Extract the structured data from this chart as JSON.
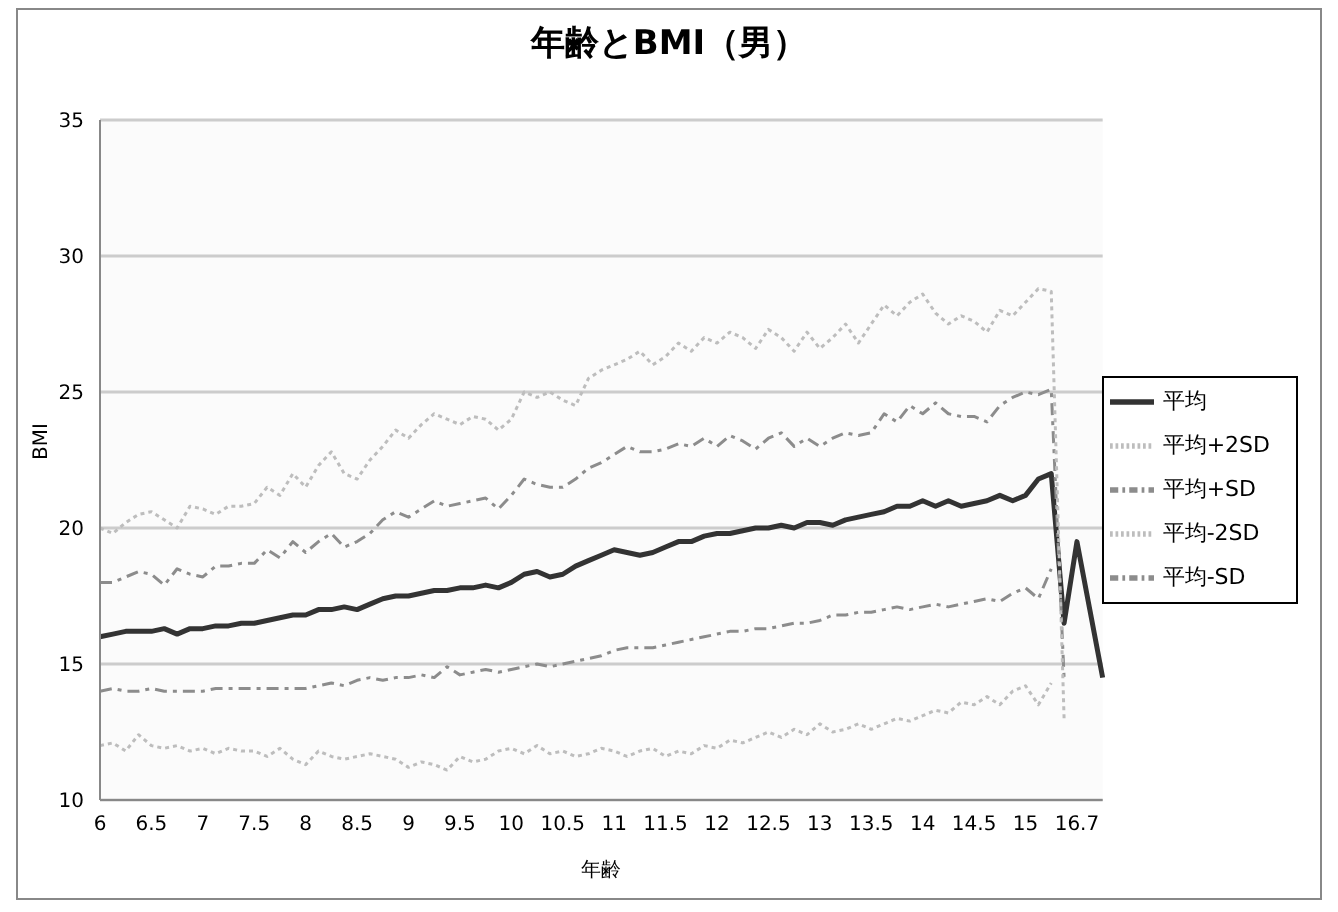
{
  "chart_data": {
    "type": "line",
    "title": "年齢とBMI（男）",
    "xlabel": "年齢",
    "ylabel": "BMI",
    "categories": [
      "6",
      null,
      null,
      null,
      "6.5",
      null,
      null,
      null,
      "7",
      null,
      null,
      null,
      "7.5",
      null,
      null,
      null,
      "8",
      null,
      null,
      null,
      "8.5",
      null,
      null,
      null,
      "9",
      null,
      null,
      null,
      "9.5",
      null,
      null,
      null,
      "10",
      null,
      null,
      null,
      "10.5",
      null,
      null,
      null,
      "11",
      null,
      null,
      null,
      "11.5",
      null,
      null,
      null,
      "12",
      null,
      null,
      null,
      "12.5",
      null,
      null,
      null,
      "13",
      null,
      null,
      null,
      "13.5",
      null,
      null,
      null,
      "14",
      null,
      null,
      null,
      "14.5",
      null,
      null,
      null,
      "15",
      null,
      null,
      null,
      "16.7",
      null,
      null
    ],
    "ylim": [
      10,
      35
    ],
    "yticks": [
      10,
      15,
      20,
      25,
      30,
      35
    ],
    "grid": "y",
    "legend": "right",
    "marker": "none",
    "series": [
      {
        "name": "平均-2SD",
        "color": "#bdbdbd",
        "line_style": "dotted",
        "values": [
          12,
          12.1,
          11.8,
          12.4,
          12,
          11.9,
          12,
          11.8,
          11.9,
          11.7,
          11.9,
          11.8,
          11.8,
          11.6,
          11.9,
          11.5,
          11.3,
          11.8,
          11.6,
          11.5,
          11.6,
          11.7,
          11.6,
          11.5,
          11.2,
          11.4,
          11.3,
          11.1,
          11.6,
          11.4,
          11.5,
          11.8,
          11.9,
          11.7,
          12,
          11.7,
          11.8,
          11.6,
          11.7,
          11.9,
          11.8,
          11.6,
          11.8,
          11.9,
          11.6,
          11.8,
          11.7,
          12,
          11.9,
          12.2,
          12.1,
          12.3,
          12.5,
          12.3,
          12.6,
          12.4,
          12.8,
          12.5,
          12.6,
          12.8,
          12.6,
          12.8,
          13,
          12.9,
          13.1,
          13.3,
          13.2,
          13.6,
          13.5,
          13.8,
          13.5,
          14,
          14.2,
          13.5,
          14.3,
          null,
          null,
          null,
          null
        ]
      },
      {
        "name": "平均-SD",
        "color": "#8c8c8c",
        "line_style": "dashed",
        "values": [
          14,
          14.1,
          14,
          14,
          14.1,
          14,
          14,
          14,
          14,
          14.1,
          14.1,
          14.1,
          14.1,
          14.1,
          14.1,
          14.1,
          14.1,
          14.2,
          14.3,
          14.2,
          14.4,
          14.5,
          14.4,
          14.5,
          14.5,
          14.6,
          14.5,
          14.9,
          14.6,
          14.7,
          14.8,
          14.7,
          14.8,
          14.9,
          15,
          14.9,
          15,
          15.1,
          15.2,
          15.3,
          15.5,
          15.6,
          15.6,
          15.6,
          15.7,
          15.8,
          15.9,
          16,
          16.1,
          16.2,
          16.2,
          16.3,
          16.3,
          16.4,
          16.5,
          16.5,
          16.6,
          16.8,
          16.8,
          16.9,
          16.9,
          17,
          17.1,
          17,
          17.1,
          17.2,
          17.1,
          17.2,
          17.3,
          17.4,
          17.3,
          17.6,
          17.8,
          17.4,
          18.5,
          null,
          null,
          null,
          null
        ]
      },
      {
        "name": "平均",
        "color": "#333333",
        "line_style": "solid",
        "values": [
          16,
          16.1,
          16.2,
          16.2,
          16.2,
          16.3,
          16.1,
          16.3,
          16.3,
          16.4,
          16.4,
          16.5,
          16.5,
          16.6,
          16.7,
          16.8,
          16.8,
          17,
          17,
          17.1,
          17,
          17.2,
          17.4,
          17.5,
          17.5,
          17.6,
          17.7,
          17.7,
          17.8,
          17.8,
          17.9,
          17.8,
          18,
          18.3,
          18.4,
          18.2,
          18.3,
          18.6,
          18.8,
          19,
          19.2,
          19.1,
          19,
          19.1,
          19.3,
          19.5,
          19.5,
          19.7,
          19.8,
          19.8,
          19.9,
          20,
          20,
          20.1,
          20,
          20.2,
          20.2,
          20.1,
          20.3,
          20.4,
          20.5,
          20.6,
          20.8,
          20.8,
          21,
          20.8,
          21,
          20.8,
          20.9,
          21,
          21.2,
          21,
          21.2,
          21.8,
          22,
          16.5,
          19.5,
          17,
          14.5
        ]
      },
      {
        "name": "平均+SD",
        "color": "#8c8c8c",
        "line_style": "dashed",
        "values": [
          18,
          18,
          18.2,
          18.4,
          18.3,
          17.9,
          18.5,
          18.3,
          18.2,
          18.6,
          18.6,
          18.7,
          18.7,
          19.2,
          18.9,
          19.5,
          19.1,
          19.5,
          19.8,
          19.3,
          19.5,
          19.8,
          20.3,
          20.6,
          20.4,
          20.7,
          21,
          20.8,
          20.9,
          21,
          21.1,
          20.7,
          21.2,
          21.8,
          21.6,
          21.5,
          21.5,
          21.8,
          22.2,
          22.4,
          22.7,
          23,
          22.8,
          22.8,
          22.9,
          23.1,
          23,
          23.3,
          23,
          23.4,
          23.2,
          22.9,
          23.3,
          23.5,
          23,
          23.3,
          23,
          23.3,
          23.5,
          23.4,
          23.5,
          24.2,
          23.9,
          24.5,
          24.2,
          24.6,
          24.2,
          24.1,
          24.1,
          23.9,
          24.5,
          24.8,
          25,
          24.9,
          25.1,
          14.5,
          null,
          null,
          null
        ]
      },
      {
        "name": "平均+2SD",
        "color": "#bdbdbd",
        "line_style": "dotted",
        "values": [
          20,
          19.8,
          20.2,
          20.5,
          20.6,
          20.3,
          20,
          20.8,
          20.7,
          20.5,
          20.8,
          20.8,
          20.9,
          21.5,
          21.2,
          22,
          21.5,
          22.3,
          22.8,
          22,
          21.8,
          22.5,
          23,
          23.6,
          23.3,
          23.8,
          24.2,
          24,
          23.8,
          24.1,
          24,
          23.6,
          24,
          25,
          24.8,
          25,
          24.7,
          24.5,
          25.5,
          25.8,
          26,
          26.2,
          26.5,
          26,
          26.3,
          26.8,
          26.5,
          27,
          26.8,
          27.2,
          27,
          26.6,
          27.3,
          27,
          26.5,
          27.2,
          26.6,
          27,
          27.5,
          26.8,
          27.5,
          28.2,
          27.8,
          28.3,
          28.6,
          27.9,
          27.5,
          27.8,
          27.6,
          27.2,
          28,
          27.8,
          28.3,
          28.8,
          28.7,
          13,
          null,
          null,
          null
        ]
      }
    ]
  }
}
